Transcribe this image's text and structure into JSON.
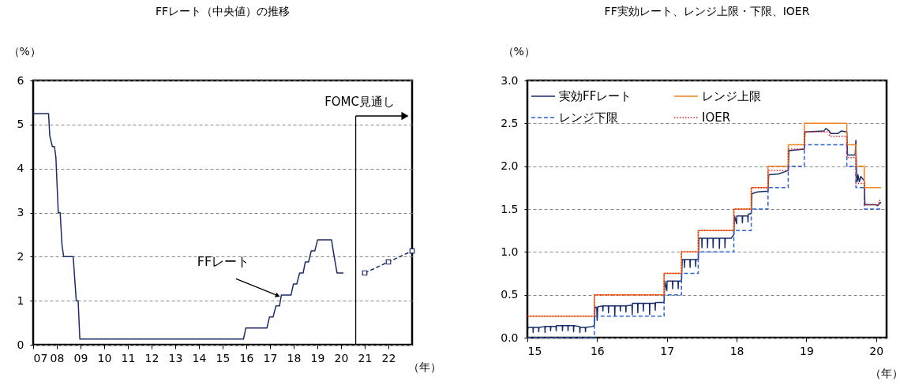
{
  "chart_data": [
    {
      "type": "line",
      "title": "FFレート（中央値）の推移",
      "ylabel": "（%）",
      "xlabel": "（年）",
      "xlim": [
        2007,
        2023
      ],
      "ylim": [
        0,
        6
      ],
      "xticks": [
        {
          "value": 2007,
          "label": "07"
        },
        {
          "value": 2008,
          "label": "08"
        },
        {
          "value": 2009,
          "label": "09"
        },
        {
          "value": 2010,
          "label": "10"
        },
        {
          "value": 2011,
          "label": "11"
        },
        {
          "value": 2012,
          "label": "12"
        },
        {
          "value": 2013,
          "label": "13"
        },
        {
          "value": 2014,
          "label": "14"
        },
        {
          "value": 2015,
          "label": "15"
        },
        {
          "value": 2016,
          "label": "16"
        },
        {
          "value": 2017,
          "label": "17"
        },
        {
          "value": 2018,
          "label": "18"
        },
        {
          "value": 2019,
          "label": "19"
        },
        {
          "value": 2020,
          "label": "20"
        },
        {
          "value": 2021,
          "label": "21"
        },
        {
          "value": 2022,
          "label": "22"
        }
      ],
      "yticks": [
        0,
        1,
        2,
        3,
        4,
        5,
        6
      ],
      "grid": "y",
      "legend": false,
      "series": [
        {
          "color": "#1a2d6b",
          "x": [
            2007.0,
            2007.65,
            2007.7,
            2007.81,
            2007.9,
            2007.96,
            2008.06,
            2008.14,
            2008.22,
            2008.29,
            2008.69,
            2008.82,
            2008.9,
            2008.97,
            2015.88,
            2015.98,
            2016.87,
            2016.98,
            2017.13,
            2017.25,
            2017.4,
            2017.48,
            2017.89,
            2017.99,
            2018.13,
            2018.25,
            2018.4,
            2018.49,
            2018.63,
            2018.74,
            2018.89,
            2019.01,
            2019.6,
            2019.67,
            2019.83,
            2020.1
          ],
          "values": [
            5.25,
            5.25,
            4.75,
            4.5,
            4.5,
            4.25,
            3.0,
            3.0,
            2.25,
            2.0,
            2.0,
            1.0,
            1.0,
            0.13,
            0.13,
            0.38,
            0.38,
            0.63,
            0.63,
            0.88,
            0.88,
            1.13,
            1.13,
            1.38,
            1.38,
            1.63,
            1.63,
            1.88,
            1.88,
            2.13,
            2.13,
            2.38,
            2.38,
            2.13,
            1.63,
            1.63
          ]
        },
        {
          "color": "#1a2d6b",
          "line_style": "dashed",
          "marker": "square",
          "x": [
            2021,
            2022,
            2023
          ],
          "values": [
            1.63,
            1.88,
            2.13
          ]
        }
      ],
      "ref_lines": [
        {
          "axis": "x",
          "value": 2020.62,
          "label": "FOMC見通し"
        }
      ],
      "annotations": [
        {
          "text": "FFレート",
          "x": 2017.3,
          "y": 1.12
        }
      ]
    },
    {
      "type": "step",
      "title": "FF実効レート、レンジ上限・下限、IOER",
      "ylabel": "（%）",
      "xlabel": "（年）",
      "xlim": [
        2015,
        2020.15
      ],
      "ylim": [
        0,
        3
      ],
      "xticks": [
        {
          "value": 2015,
          "label": "15"
        },
        {
          "value": 2016,
          "label": "16"
        },
        {
          "value": 2017,
          "label": "17"
        },
        {
          "value": 2018,
          "label": "18"
        },
        {
          "value": 2019,
          "label": "19"
        },
        {
          "value": 2020,
          "label": "20"
        }
      ],
      "yticks": [
        {
          "value": 0,
          "label": "0.0"
        },
        {
          "value": 0.5,
          "label": "0.5"
        },
        {
          "value": 1,
          "label": "1.0"
        },
        {
          "value": 1.5,
          "label": "1.5"
        },
        {
          "value": 2,
          "label": "2.0"
        },
        {
          "value": 2.5,
          "label": "2.5"
        },
        {
          "value": 3,
          "label": "3.0"
        }
      ],
      "grid": "y",
      "legend": "top",
      "series": [
        {
          "name": "実効FFレート",
          "type": "line",
          "color": "#1a2d6b",
          "x": [
            2015.0,
            2015.02,
            2015.08,
            2015.083,
            2015.087,
            2015.16,
            2015.163,
            2015.167,
            2015.25,
            2015.253,
            2015.257,
            2015.33,
            2015.333,
            2015.337,
            2015.41,
            2015.413,
            2015.417,
            2015.5,
            2015.503,
            2015.507,
            2015.58,
            2015.583,
            2015.587,
            2015.66,
            2015.663,
            2015.667,
            2015.75,
            2015.753,
            2015.757,
            2015.83,
            2015.833,
            2015.837,
            2015.93,
            2015.96,
            2015.97,
            2015.995,
            2016.0,
            2016.01,
            2016.08,
            2016.083,
            2016.087,
            2016.16,
            2016.163,
            2016.167,
            2016.25,
            2016.253,
            2016.257,
            2016.33,
            2016.333,
            2016.337,
            2016.41,
            2016.413,
            2016.417,
            2016.5,
            2016.503,
            2016.507,
            2016.58,
            2016.583,
            2016.587,
            2016.66,
            2016.663,
            2016.667,
            2016.75,
            2016.753,
            2016.757,
            2016.83,
            2016.833,
            2016.837,
            2016.96,
            2016.97,
            2017.0,
            2017.003,
            2017.08,
            2017.083,
            2017.087,
            2017.16,
            2017.163,
            2017.167,
            2017.21,
            2017.22,
            2017.25,
            2017.253,
            2017.257,
            2017.33,
            2017.333,
            2017.337,
            2017.41,
            2017.413,
            2017.417,
            2017.45,
            2017.46,
            2017.5,
            2017.503,
            2017.507,
            2017.58,
            2017.583,
            2017.587,
            2017.66,
            2017.663,
            2017.667,
            2017.75,
            2017.753,
            2017.757,
            2017.83,
            2017.833,
            2017.837,
            2017.92,
            2017.96,
            2017.97,
            2018.0,
            2018.003,
            2018.08,
            2018.083,
            2018.087,
            2018.16,
            2018.163,
            2018.167,
            2018.21,
            2018.22,
            2018.3,
            2018.45,
            2018.46,
            2018.6,
            2018.74,
            2018.75,
            2018.97,
            2018.98,
            2019.25,
            2019.28,
            2019.33,
            2019.35,
            2019.45,
            2019.5,
            2019.58,
            2019.59,
            2019.7,
            2019.71,
            2019.72,
            2019.73,
            2019.74,
            2019.76,
            2019.78,
            2019.83,
            2019.84,
            2020.0,
            2020.02,
            2020.07
          ],
          "values": [
            0.1,
            0.12,
            0.12,
            0.06,
            0.12,
            0.12,
            0.07,
            0.12,
            0.13,
            0.06,
            0.13,
            0.13,
            0.08,
            0.13,
            0.13,
            0.08,
            0.14,
            0.14,
            0.08,
            0.14,
            0.14,
            0.08,
            0.14,
            0.14,
            0.07,
            0.14,
            0.13,
            0.06,
            0.12,
            0.12,
            0.07,
            0.12,
            0.13,
            0.14,
            0.36,
            0.35,
            0.2,
            0.36,
            0.37,
            0.31,
            0.37,
            0.37,
            0.29,
            0.37,
            0.37,
            0.25,
            0.37,
            0.37,
            0.31,
            0.37,
            0.37,
            0.3,
            0.37,
            0.38,
            0.27,
            0.4,
            0.4,
            0.29,
            0.4,
            0.4,
            0.31,
            0.4,
            0.4,
            0.27,
            0.4,
            0.4,
            0.32,
            0.41,
            0.41,
            0.66,
            0.55,
            0.66,
            0.66,
            0.57,
            0.66,
            0.66,
            0.57,
            0.66,
            0.66,
            0.91,
            0.91,
            0.82,
            0.91,
            0.91,
            0.82,
            0.91,
            0.91,
            0.83,
            0.91,
            0.91,
            1.16,
            1.16,
            1.05,
            1.16,
            1.16,
            1.05,
            1.16,
            1.16,
            1.05,
            1.16,
            1.16,
            1.04,
            1.16,
            1.16,
            1.05,
            1.16,
            1.16,
            1.2,
            1.42,
            1.33,
            1.42,
            1.42,
            1.34,
            1.42,
            1.42,
            1.35,
            1.44,
            1.45,
            1.68,
            1.7,
            1.71,
            1.9,
            1.91,
            1.95,
            2.18,
            2.2,
            2.4,
            2.41,
            2.44,
            2.41,
            2.38,
            2.38,
            2.41,
            2.4,
            2.13,
            2.13,
            2.3,
            1.88,
            1.82,
            1.9,
            1.82,
            1.88,
            1.83,
            1.55,
            1.55,
            1.54,
            1.58
          ]
        },
        {
          "name": "レンジ上限",
          "color": "#f0821e",
          "x": [
            2015.0,
            2015.96,
            2016.96,
            2017.21,
            2017.45,
            2017.96,
            2018.21,
            2018.45,
            2018.74,
            2018.97,
            2019.58,
            2019.71,
            2019.83,
            2020.07
          ],
          "values": [
            0.25,
            0.5,
            0.75,
            1.0,
            1.25,
            1.5,
            1.75,
            2.0,
            2.25,
            2.5,
            2.25,
            2.0,
            1.75,
            1.75
          ]
        },
        {
          "name": "レンジ下限",
          "color": "#2a62d0",
          "line_style": "dashed",
          "x": [
            2015.0,
            2015.96,
            2016.96,
            2017.21,
            2017.45,
            2017.96,
            2018.21,
            2018.45,
            2018.74,
            2018.97,
            2019.58,
            2019.71,
            2019.83,
            2020.07
          ],
          "values": [
            0,
            0.25,
            0.5,
            0.75,
            1.0,
            1.25,
            1.5,
            1.75,
            2.0,
            2.25,
            2.0,
            1.75,
            1.5,
            1.5
          ]
        },
        {
          "name": "IOER",
          "color": "#e8202a",
          "line_style": "dotted",
          "x": [
            2015.0,
            2015.96,
            2016.96,
            2017.21,
            2017.45,
            2017.96,
            2018.21,
            2018.45,
            2018.74,
            2018.97,
            2019.33,
            2019.58,
            2019.71,
            2019.83,
            2020.04,
            2020.07
          ],
          "values": [
            0.25,
            0.5,
            0.75,
            1.0,
            1.25,
            1.5,
            1.75,
            1.95,
            2.2,
            2.4,
            2.35,
            2.1,
            1.8,
            1.55,
            1.6,
            1.6
          ]
        }
      ]
    }
  ]
}
